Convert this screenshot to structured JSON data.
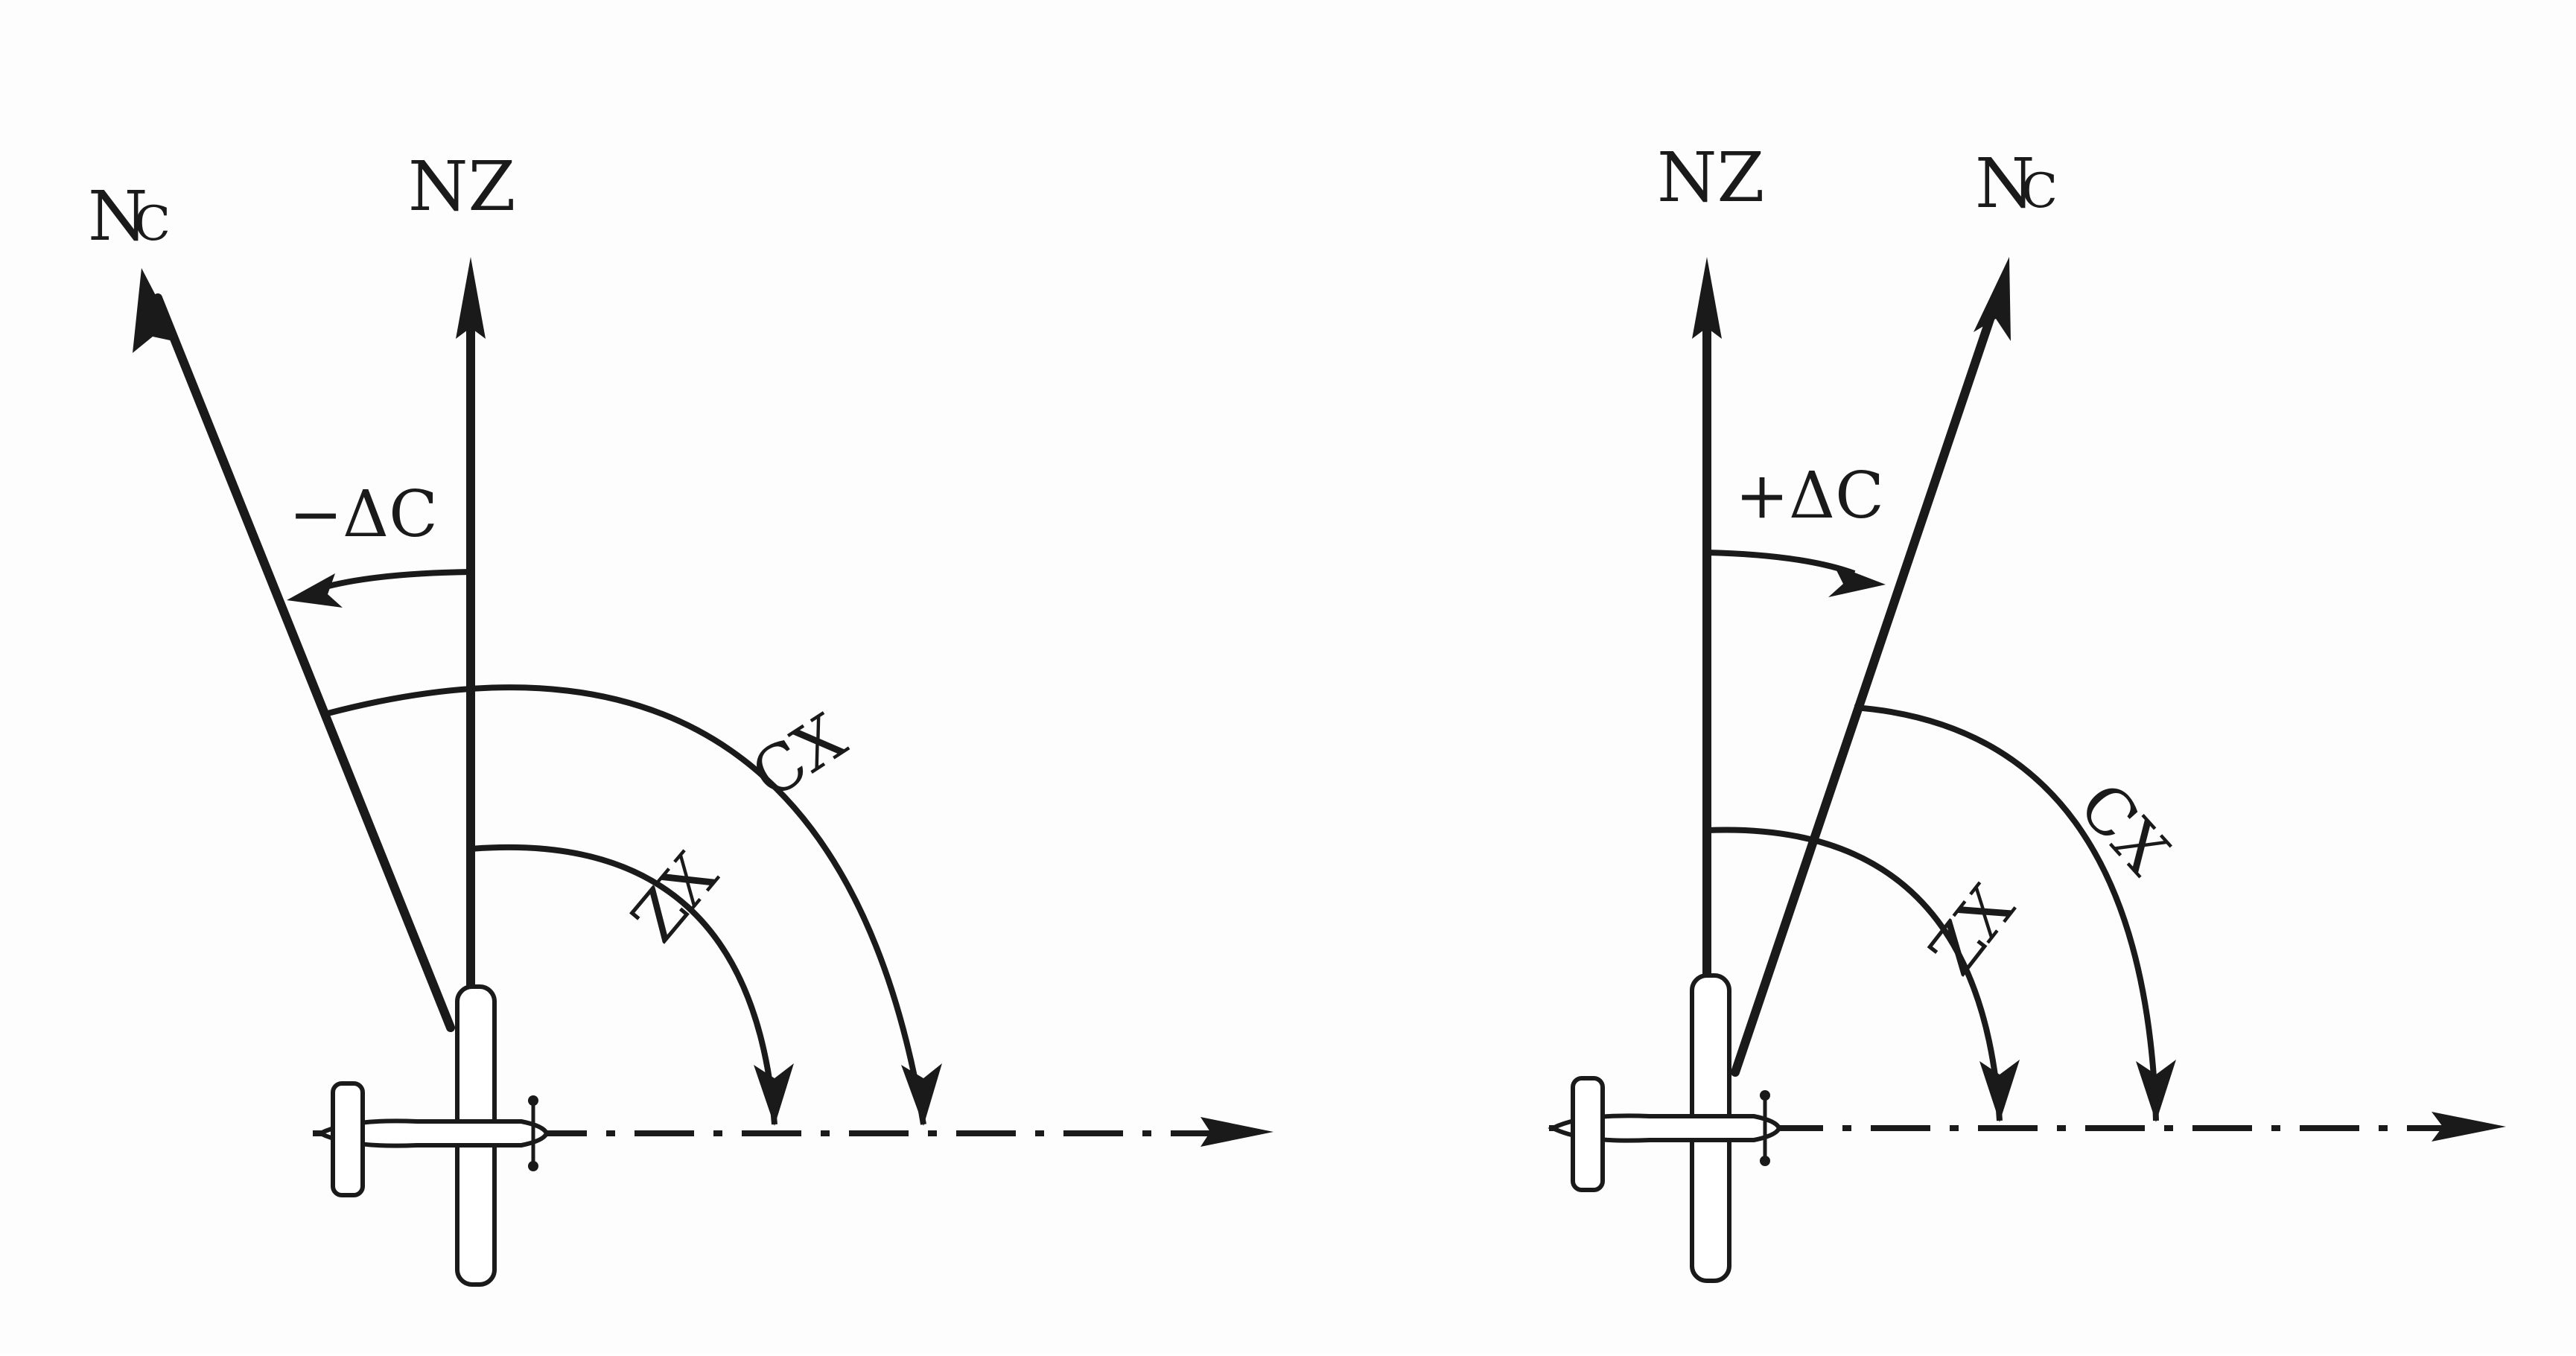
{
  "left_panel": {
    "true_north_label": "NZ",
    "compass_north_label": "N",
    "compass_north_sub": "C",
    "deviation_label": "−ΔC",
    "compass_course_label": "CX",
    "true_course_label": "ZX"
  },
  "right_panel": {
    "true_north_label": "NZ",
    "compass_north_label": "N",
    "compass_north_sub": "C",
    "deviation_label": "+ΔC",
    "compass_course_label": "CX",
    "true_course_label": "ZX"
  }
}
